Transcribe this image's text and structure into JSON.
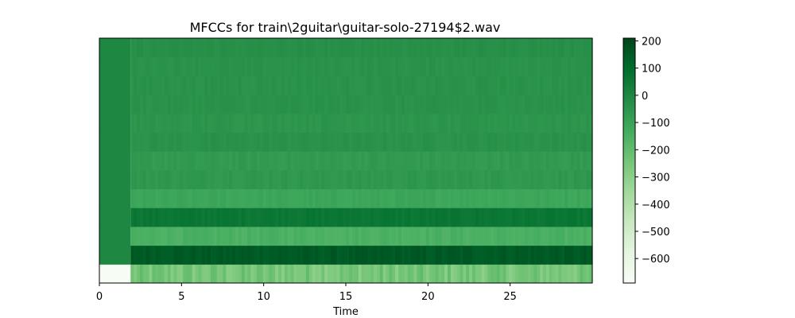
{
  "chart_data": {
    "type": "heatmap",
    "title": "MFCCs for train\\2guitar\\guitar-solo-27194$2.wav",
    "xlabel": "Time",
    "ylabel": "",
    "xlim": [
      0,
      30
    ],
    "x_ticks": [
      0,
      5,
      10,
      15,
      20,
      25
    ],
    "y_ticks_shown": false,
    "n_coefficients": 13,
    "silence_end_time": 1.9,
    "colormap": "Greens",
    "color_range": [
      -690,
      210
    ],
    "colorbar_ticks": [
      200,
      100,
      0,
      -100,
      -200,
      -300,
      -400,
      -500,
      -600
    ],
    "colorbar_tick_labels": [
      "200",
      "100",
      "0",
      "−100",
      "−200",
      "−300",
      "−400",
      "−500",
      "−600"
    ],
    "coefficient_means": [
      -250,
      150,
      -150,
      60,
      -110,
      -60,
      -70,
      -40,
      -50,
      -40,
      -40,
      -40,
      -30
    ],
    "silence_values": [
      -690,
      0,
      0,
      0,
      0,
      0,
      0,
      0,
      0,
      0,
      0,
      0,
      0
    ]
  }
}
